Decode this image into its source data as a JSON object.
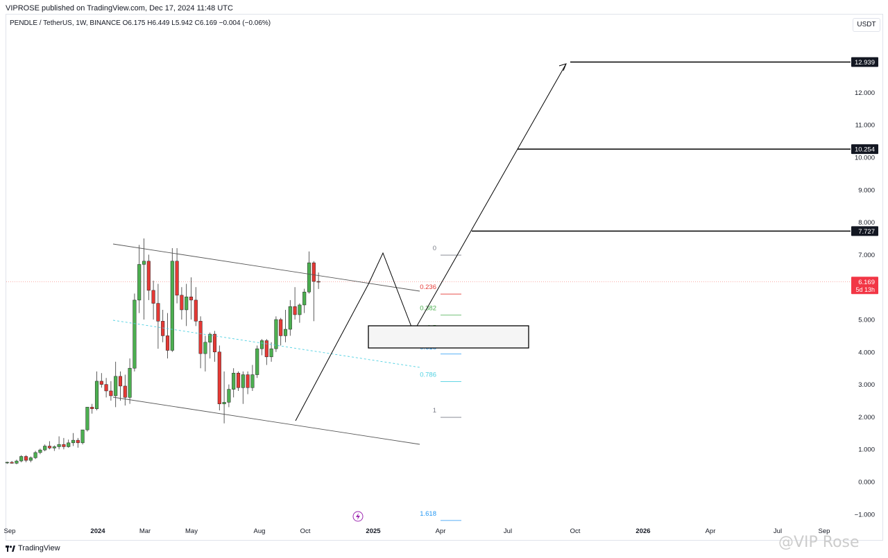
{
  "header": {
    "published": "VIPROSE published on TradingView.com, Dec 17, 2024 11:48 UTC",
    "legend": "PENDLE / TetherUS, 1W, BINANCE  O6.175  H6.449  L5.942  C6.169  −0.004 (−0.06%)",
    "currency": "USDT"
  },
  "footer": {
    "brand": "TradingView",
    "watermark": "@VIP Rose"
  },
  "colors": {
    "up": "#4caf50",
    "down": "#e53935",
    "drawing": "#000000",
    "fib_0": "#787b86",
    "fib_0236": "#e53935",
    "fib_0382": "#4caf50",
    "fib_05": "#4caf50",
    "fib_0618": "#2196f3",
    "fib_0786": "#4dd0e1",
    "fib_1": "#787b86",
    "fib_1618": "#2196f3"
  },
  "chart_data": {
    "type": "candlestick",
    "symbol": "PENDLE / TetherUS",
    "interval": "1W",
    "exchange": "BINANCE",
    "ohlc_last": {
      "open": 6.175,
      "high": 6.449,
      "low": 5.942,
      "close": 6.169,
      "change": "−0.004 (−0.06%)"
    },
    "ylim": [
      -1.0,
      13.0
    ],
    "y_ticks": [
      "-1.000",
      "0.000",
      "1.000",
      "2.000",
      "3.000",
      "4.000",
      "5.000",
      "6.000",
      "7.000",
      "8.000",
      "9.000",
      "10.000",
      "11.000",
      "12.000"
    ],
    "x_ticks": [
      "Sep",
      "2024",
      "Mar",
      "May",
      "Aug",
      "Oct",
      "2025",
      "Apr",
      "Jul",
      "Oct",
      "2026",
      "Apr",
      "Jul",
      "Sep"
    ],
    "price_labels": [
      {
        "text": "12.939",
        "value": 12.939,
        "style": "dark"
      },
      {
        "text": "10.254",
        "value": 10.254,
        "style": "dark"
      },
      {
        "text": "7.727",
        "value": 7.727,
        "style": "dark"
      },
      {
        "text": "6.169",
        "value": 6.169,
        "style": "red",
        "sub": "5d 13h"
      }
    ],
    "fib_levels": [
      {
        "label": "0",
        "price": 7.2
      },
      {
        "label": "0.236",
        "price": 6.0
      },
      {
        "label": "0.382",
        "price": 5.35
      },
      {
        "label": "0.5",
        "price": 4.75
      },
      {
        "label": "0.618",
        "price": 4.15
      },
      {
        "label": "0.786",
        "price": 3.3
      },
      {
        "label": "1",
        "price": 2.2
      },
      {
        "label": "1.618",
        "price": -0.98
      }
    ],
    "candles": [
      {
        "w": 0,
        "open": 0.58,
        "high": 0.62,
        "low": 0.55,
        "close": 0.6
      },
      {
        "w": 1,
        "open": 0.6,
        "high": 0.64,
        "low": 0.56,
        "close": 0.57
      },
      {
        "w": 2,
        "open": 0.57,
        "high": 0.68,
        "low": 0.54,
        "close": 0.64
      },
      {
        "w": 3,
        "open": 0.64,
        "high": 0.82,
        "low": 0.6,
        "close": 0.78
      },
      {
        "w": 4,
        "open": 0.78,
        "high": 0.82,
        "low": 0.6,
        "close": 0.66
      },
      {
        "w": 5,
        "open": 0.66,
        "high": 0.78,
        "low": 0.6,
        "close": 0.74
      },
      {
        "w": 6,
        "open": 0.74,
        "high": 0.95,
        "low": 0.7,
        "close": 0.9
      },
      {
        "w": 7,
        "open": 0.9,
        "high": 1.02,
        "low": 0.85,
        "close": 0.98
      },
      {
        "w": 8,
        "open": 0.98,
        "high": 1.15,
        "low": 0.94,
        "close": 1.1
      },
      {
        "w": 9,
        "open": 1.1,
        "high": 1.25,
        "low": 1.0,
        "close": 1.04
      },
      {
        "w": 10,
        "open": 1.04,
        "high": 1.12,
        "low": 0.95,
        "close": 1.08
      },
      {
        "w": 11,
        "open": 1.08,
        "high": 1.4,
        "low": 1.0,
        "close": 1.15
      },
      {
        "w": 12,
        "open": 1.15,
        "high": 1.35,
        "low": 1.0,
        "close": 1.08
      },
      {
        "w": 13,
        "open": 1.08,
        "high": 1.3,
        "low": 1.05,
        "close": 1.2
      },
      {
        "w": 14,
        "open": 1.2,
        "high": 1.5,
        "low": 1.1,
        "close": 1.28
      },
      {
        "w": 15,
        "open": 1.28,
        "high": 1.35,
        "low": 1.05,
        "close": 1.2
      },
      {
        "w": 16,
        "open": 1.2,
        "high": 1.6,
        "low": 1.15,
        "close": 1.6
      },
      {
        "w": 17,
        "open": 1.6,
        "high": 2.3,
        "low": 1.55,
        "close": 2.3
      },
      {
        "w": 18,
        "open": 2.3,
        "high": 2.4,
        "low": 2.1,
        "close": 2.25
      },
      {
        "w": 19,
        "open": 2.25,
        "high": 3.4,
        "low": 2.2,
        "close": 3.1
      },
      {
        "w": 20,
        "open": 3.1,
        "high": 3.35,
        "low": 2.9,
        "close": 3.0
      },
      {
        "w": 21,
        "open": 3.0,
        "high": 3.2,
        "low": 2.6,
        "close": 2.8
      },
      {
        "w": 22,
        "open": 2.8,
        "high": 3.1,
        "low": 2.5,
        "close": 2.65
      },
      {
        "w": 23,
        "open": 2.65,
        "high": 3.7,
        "low": 2.3,
        "close": 3.25
      },
      {
        "w": 24,
        "open": 3.25,
        "high": 3.4,
        "low": 2.5,
        "close": 2.95
      },
      {
        "w": 25,
        "open": 2.95,
        "high": 3.3,
        "low": 2.35,
        "close": 2.6
      },
      {
        "w": 26,
        "open": 2.6,
        "high": 3.8,
        "low": 2.4,
        "close": 3.5
      },
      {
        "w": 27,
        "open": 3.5,
        "high": 5.8,
        "low": 3.4,
        "close": 5.6
      },
      {
        "w": 28,
        "open": 5.6,
        "high": 7.3,
        "low": 5.2,
        "close": 6.7
      },
      {
        "w": 29,
        "open": 6.7,
        "high": 7.5,
        "low": 5.0,
        "close": 6.8
      },
      {
        "w": 30,
        "open": 6.8,
        "high": 7.0,
        "low": 5.6,
        "close": 5.9
      },
      {
        "w": 31,
        "open": 5.9,
        "high": 6.2,
        "low": 5.0,
        "close": 5.5
      },
      {
        "w": 32,
        "open": 5.5,
        "high": 6.1,
        "low": 4.1,
        "close": 4.95
      },
      {
        "w": 33,
        "open": 4.95,
        "high": 5.3,
        "low": 4.3,
        "close": 4.5
      },
      {
        "w": 34,
        "open": 4.5,
        "high": 5.2,
        "low": 3.8,
        "close": 4.05
      },
      {
        "w": 35,
        "open": 4.05,
        "high": 7.2,
        "low": 4.0,
        "close": 6.8
      },
      {
        "w": 36,
        "open": 6.8,
        "high": 7.2,
        "low": 5.5,
        "close": 5.75
      },
      {
        "w": 37,
        "open": 5.75,
        "high": 6.0,
        "low": 5.0,
        "close": 5.3
      },
      {
        "w": 38,
        "open": 5.3,
        "high": 6.1,
        "low": 4.8,
        "close": 5.7
      },
      {
        "w": 39,
        "open": 5.7,
        "high": 6.3,
        "low": 5.0,
        "close": 5.6
      },
      {
        "w": 40,
        "open": 5.6,
        "high": 6.0,
        "low": 4.8,
        "close": 4.95
      },
      {
        "w": 41,
        "open": 4.95,
        "high": 5.1,
        "low": 3.5,
        "close": 3.95
      },
      {
        "w": 42,
        "open": 3.95,
        "high": 4.5,
        "low": 3.4,
        "close": 4.3
      },
      {
        "w": 43,
        "open": 4.3,
        "high": 4.6,
        "low": 3.8,
        "close": 4.55
      },
      {
        "w": 44,
        "open": 4.55,
        "high": 4.65,
        "low": 3.7,
        "close": 4.0
      },
      {
        "w": 45,
        "open": 4.0,
        "high": 4.2,
        "low": 2.2,
        "close": 2.4
      },
      {
        "w": 46,
        "open": 2.4,
        "high": 3.4,
        "low": 1.8,
        "close": 2.45
      },
      {
        "w": 47,
        "open": 2.45,
        "high": 3.0,
        "low": 2.3,
        "close": 2.85
      },
      {
        "w": 48,
        "open": 2.85,
        "high": 3.5,
        "low": 2.6,
        "close": 3.35
      },
      {
        "w": 49,
        "open": 3.35,
        "high": 3.4,
        "low": 2.8,
        "close": 2.9
      },
      {
        "w": 50,
        "open": 2.9,
        "high": 3.4,
        "low": 2.4,
        "close": 3.3
      },
      {
        "w": 51,
        "open": 3.3,
        "high": 3.4,
        "low": 2.7,
        "close": 2.9
      },
      {
        "w": 52,
        "open": 2.9,
        "high": 3.6,
        "low": 2.8,
        "close": 3.3
      },
      {
        "w": 53,
        "open": 3.3,
        "high": 4.2,
        "low": 3.2,
        "close": 4.1
      },
      {
        "w": 54,
        "open": 4.1,
        "high": 4.4,
        "low": 3.9,
        "close": 4.35
      },
      {
        "w": 55,
        "open": 4.35,
        "high": 4.4,
        "low": 3.6,
        "close": 3.85
      },
      {
        "w": 56,
        "open": 3.85,
        "high": 4.3,
        "low": 3.7,
        "close": 4.1
      },
      {
        "w": 57,
        "open": 4.1,
        "high": 5.1,
        "low": 4.0,
        "close": 5.0
      },
      {
        "w": 58,
        "open": 5.0,
        "high": 5.05,
        "low": 4.2,
        "close": 4.5
      },
      {
        "w": 59,
        "open": 4.5,
        "high": 5.3,
        "low": 4.3,
        "close": 4.7
      },
      {
        "w": 60,
        "open": 4.7,
        "high": 5.6,
        "low": 4.5,
        "close": 5.4
      },
      {
        "w": 61,
        "open": 5.4,
        "high": 6.0,
        "low": 5.0,
        "close": 5.15
      },
      {
        "w": 62,
        "open": 5.15,
        "high": 5.5,
        "low": 4.9,
        "close": 5.45
      },
      {
        "w": 63,
        "open": 5.45,
        "high": 5.95,
        "low": 5.2,
        "close": 5.85
      },
      {
        "w": 64,
        "open": 5.85,
        "high": 7.1,
        "low": 5.8,
        "close": 6.75
      },
      {
        "w": 65,
        "open": 6.75,
        "high": 6.8,
        "low": 4.95,
        "close": 6.175
      },
      {
        "w": 66,
        "open": 6.175,
        "high": 6.449,
        "low": 5.942,
        "close": 6.169
      }
    ]
  }
}
